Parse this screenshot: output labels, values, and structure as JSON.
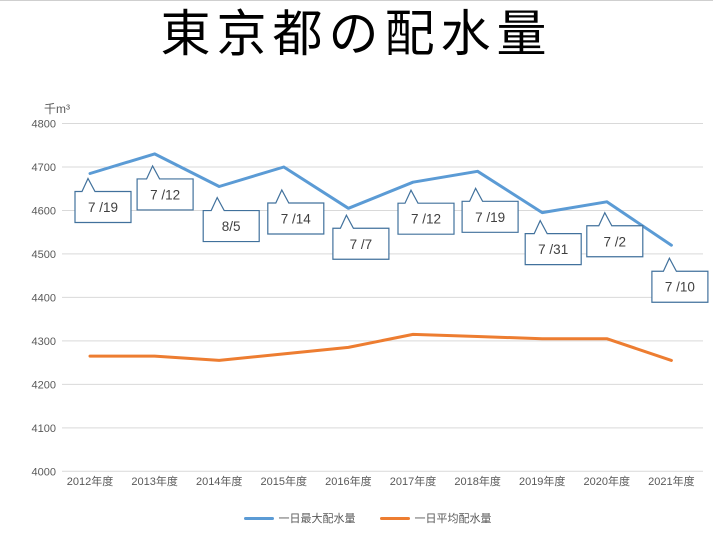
{
  "title": "東京都の配水量",
  "chart_data": {
    "type": "line",
    "title": "東京都の配水量",
    "unit_label": "千m³",
    "categories": [
      "2012年度",
      "2013年度",
      "2014年度",
      "2015年度",
      "2016年度",
      "2017年度",
      "2018年度",
      "2019年度",
      "2020年度",
      "2021年度"
    ],
    "series": [
      {
        "name": "一日最大配水量",
        "color": "#5b9bd5",
        "values": [
          4685,
          4730,
          4655,
          4700,
          4605,
          4665,
          4690,
          4595,
          4620,
          4520
        ],
        "callouts": [
          "7 /19",
          "7 /12",
          "8/5",
          "7 /14",
          "7 /7",
          "7 /12",
          "7 /19",
          "7 /31",
          "7 /2",
          "7 /10"
        ]
      },
      {
        "name": "一日平均配水量",
        "color": "#ed7d31",
        "values": [
          4265,
          4265,
          4255,
          4270,
          4285,
          4315,
          4310,
          4305,
          4305,
          4255
        ]
      }
    ],
    "ylim": [
      4000,
      4800
    ],
    "ytick_step": 100,
    "grid": true,
    "legend_position": "bottom",
    "colors": {
      "gridline": "#d9d9d9",
      "axis_text": "#595959",
      "callout_border": "#41719c",
      "callout_text": "#404040"
    }
  }
}
